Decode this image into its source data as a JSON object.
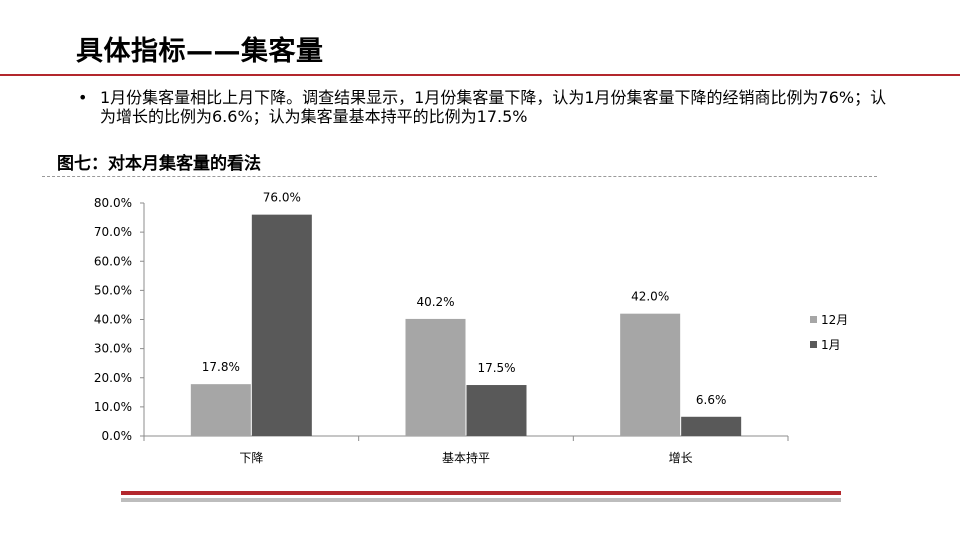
{
  "header": {
    "title": "具体指标——集客量"
  },
  "bullet": {
    "marker": "•",
    "text": "1月份集客量相比上月下降。调查结果显示，1月份集客量下降，认为1月份集客量下降的经销商比例为76%；认为增长的比例为6.6%；认为集客量基本持平的比例为17.5%"
  },
  "figure": {
    "subtitle": "图七：对本月集客量的看法"
  },
  "colors": {
    "accent": "#b3272d",
    "series_12": "#a6a6a6",
    "series_1": "#595959"
  },
  "chart_data": {
    "type": "bar",
    "title": "",
    "xlabel": "",
    "ylabel": "",
    "categories": [
      "下降",
      "基本持平",
      "增长"
    ],
    "series": [
      {
        "name": "12月",
        "values": [
          17.8,
          40.2,
          42.0
        ],
        "labels": [
          "17.8%",
          "40.2%",
          "42.0%"
        ]
      },
      {
        "name": "1月",
        "values": [
          76.0,
          17.5,
          6.6
        ],
        "labels": [
          "76.0%",
          "17.5%",
          "6.6%"
        ]
      }
    ],
    "ylim": [
      0,
      80
    ],
    "yticks": [
      "0.0%",
      "10.0%",
      "20.0%",
      "30.0%",
      "40.0%",
      "50.0%",
      "60.0%",
      "70.0%",
      "80.0%"
    ],
    "grid": false,
    "legend": "right"
  }
}
